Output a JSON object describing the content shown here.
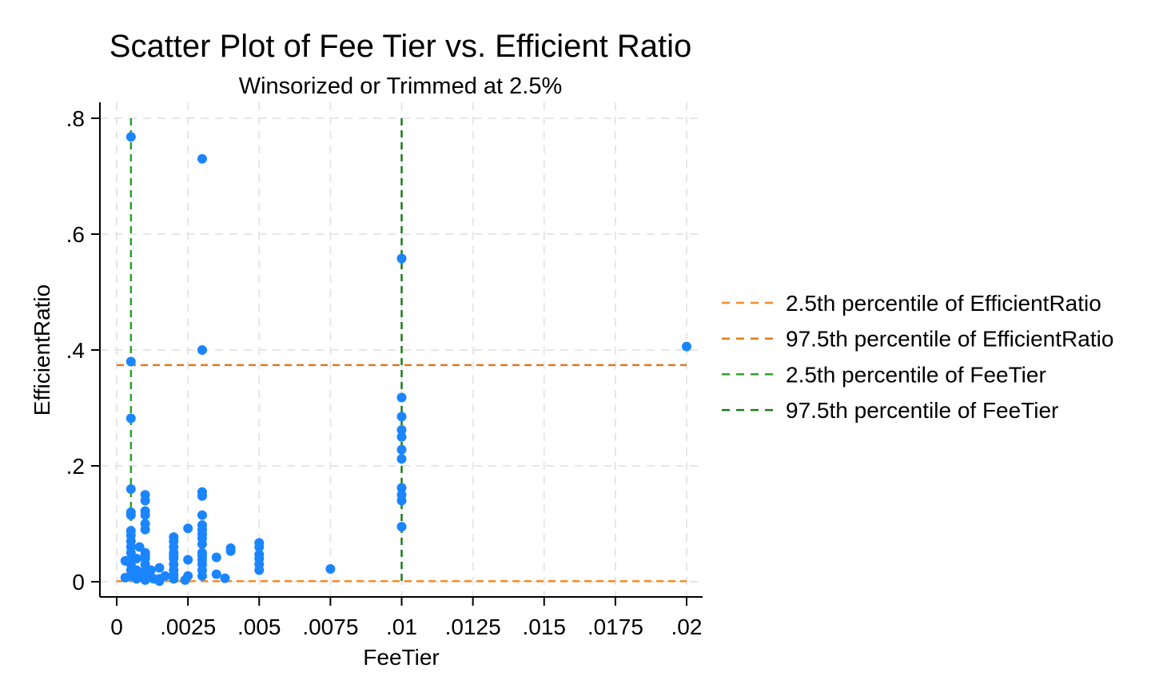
{
  "chart_data": {
    "type": "scatter",
    "title": "Scatter Plot of Fee Tier vs. Efficient Ratio",
    "subtitle": "Winsorized or Trimmed at 2.5%",
    "xlabel": "FeeTier",
    "ylabel": "EfficientRatio",
    "xlim": [
      0,
      0.02
    ],
    "ylim": [
      0,
      0.8
    ],
    "x_ticks": [
      0,
      0.0025,
      0.005,
      0.0075,
      0.01,
      0.0125,
      0.015,
      0.0175,
      0.02
    ],
    "x_tick_labels": [
      "0",
      ".0025",
      ".005",
      ".0075",
      ".01",
      ".0125",
      ".015",
      ".0175",
      ".02"
    ],
    "y_ticks": [
      0,
      0.2,
      0.4,
      0.6,
      0.8
    ],
    "y_tick_labels": [
      "0",
      ".2",
      ".4",
      ".6",
      ".8"
    ],
    "grid": true,
    "legend_position": "right",
    "marker_color": "#1a85ff",
    "points": [
      {
        "x": 0.0005,
        "y": 0.768
      },
      {
        "x": 0.0005,
        "y": 0.38
      },
      {
        "x": 0.0005,
        "y": 0.282
      },
      {
        "x": 0.0005,
        "y": 0.16
      },
      {
        "x": 0.0005,
        "y": 0.12
      },
      {
        "x": 0.0005,
        "y": 0.115
      },
      {
        "x": 0.0005,
        "y": 0.088
      },
      {
        "x": 0.0005,
        "y": 0.08
      },
      {
        "x": 0.0005,
        "y": 0.07
      },
      {
        "x": 0.0005,
        "y": 0.06
      },
      {
        "x": 0.0005,
        "y": 0.05
      },
      {
        "x": 0.0005,
        "y": 0.04
      },
      {
        "x": 0.0005,
        "y": 0.03
      },
      {
        "x": 0.0005,
        "y": 0.02
      },
      {
        "x": 0.0005,
        "y": 0.01
      },
      {
        "x": 0.0003,
        "y": 0.036
      },
      {
        "x": 0.0003,
        "y": 0.007
      },
      {
        "x": 0.0007,
        "y": 0.04
      },
      {
        "x": 0.0007,
        "y": 0.02
      },
      {
        "x": 0.0007,
        "y": 0.005
      },
      {
        "x": 0.0008,
        "y": 0.06
      },
      {
        "x": 0.0008,
        "y": 0.01
      },
      {
        "x": 0.001,
        "y": 0.15
      },
      {
        "x": 0.001,
        "y": 0.14
      },
      {
        "x": 0.001,
        "y": 0.122
      },
      {
        "x": 0.001,
        "y": 0.115
      },
      {
        "x": 0.001,
        "y": 0.1
      },
      {
        "x": 0.001,
        "y": 0.09
      },
      {
        "x": 0.001,
        "y": 0.05
      },
      {
        "x": 0.001,
        "y": 0.045
      },
      {
        "x": 0.001,
        "y": 0.04
      },
      {
        "x": 0.001,
        "y": 0.03
      },
      {
        "x": 0.001,
        "y": 0.02
      },
      {
        "x": 0.001,
        "y": 0.01
      },
      {
        "x": 0.001,
        "y": 0.003
      },
      {
        "x": 0.0012,
        "y": 0.02
      },
      {
        "x": 0.0012,
        "y": 0.008
      },
      {
        "x": 0.0013,
        "y": 0.005
      },
      {
        "x": 0.0015,
        "y": 0.024
      },
      {
        "x": 0.0015,
        "y": 0.005
      },
      {
        "x": 0.0015,
        "y": 0.001
      },
      {
        "x": 0.0017,
        "y": 0.01
      },
      {
        "x": 0.002,
        "y": 0.077
      },
      {
        "x": 0.002,
        "y": 0.07
      },
      {
        "x": 0.002,
        "y": 0.06
      },
      {
        "x": 0.002,
        "y": 0.05
      },
      {
        "x": 0.002,
        "y": 0.045
      },
      {
        "x": 0.002,
        "y": 0.04
      },
      {
        "x": 0.002,
        "y": 0.03
      },
      {
        "x": 0.002,
        "y": 0.02
      },
      {
        "x": 0.002,
        "y": 0.012
      },
      {
        "x": 0.002,
        "y": 0.005
      },
      {
        "x": 0.0025,
        "y": 0.092
      },
      {
        "x": 0.0025,
        "y": 0.038
      },
      {
        "x": 0.0025,
        "y": 0.01
      },
      {
        "x": 0.0024,
        "y": 0.003
      },
      {
        "x": 0.003,
        "y": 0.73
      },
      {
        "x": 0.003,
        "y": 0.4
      },
      {
        "x": 0.003,
        "y": 0.155
      },
      {
        "x": 0.003,
        "y": 0.148
      },
      {
        "x": 0.003,
        "y": 0.115
      },
      {
        "x": 0.003,
        "y": 0.098
      },
      {
        "x": 0.003,
        "y": 0.09
      },
      {
        "x": 0.003,
        "y": 0.082
      },
      {
        "x": 0.003,
        "y": 0.075
      },
      {
        "x": 0.003,
        "y": 0.065
      },
      {
        "x": 0.003,
        "y": 0.05
      },
      {
        "x": 0.003,
        "y": 0.045
      },
      {
        "x": 0.003,
        "y": 0.038
      },
      {
        "x": 0.003,
        "y": 0.03
      },
      {
        "x": 0.003,
        "y": 0.02
      },
      {
        "x": 0.003,
        "y": 0.01
      },
      {
        "x": 0.0035,
        "y": 0.042
      },
      {
        "x": 0.0035,
        "y": 0.013
      },
      {
        "x": 0.0038,
        "y": 0.006
      },
      {
        "x": 0.004,
        "y": 0.058
      },
      {
        "x": 0.004,
        "y": 0.053
      },
      {
        "x": 0.005,
        "y": 0.067
      },
      {
        "x": 0.005,
        "y": 0.06
      },
      {
        "x": 0.005,
        "y": 0.047
      },
      {
        "x": 0.005,
        "y": 0.04
      },
      {
        "x": 0.005,
        "y": 0.03
      },
      {
        "x": 0.005,
        "y": 0.02
      },
      {
        "x": 0.0075,
        "y": 0.022
      },
      {
        "x": 0.01,
        "y": 0.558
      },
      {
        "x": 0.01,
        "y": 0.318
      },
      {
        "x": 0.01,
        "y": 0.285
      },
      {
        "x": 0.01,
        "y": 0.262
      },
      {
        "x": 0.01,
        "y": 0.25
      },
      {
        "x": 0.01,
        "y": 0.228
      },
      {
        "x": 0.01,
        "y": 0.212
      },
      {
        "x": 0.01,
        "y": 0.162
      },
      {
        "x": 0.01,
        "y": 0.15
      },
      {
        "x": 0.01,
        "y": 0.14
      },
      {
        "x": 0.01,
        "y": 0.095
      },
      {
        "x": 0.02,
        "y": 0.406
      }
    ],
    "reference_lines": [
      {
        "name": "2.5th percentile of EfficientRatio",
        "orientation": "horizontal",
        "value": 0.001,
        "color": "#f28e2b"
      },
      {
        "name": "97.5th percentile of EfficientRatio",
        "orientation": "horizontal",
        "value": 0.374,
        "color": "#e07a1f"
      },
      {
        "name": "2.5th percentile of FeeTier",
        "orientation": "vertical",
        "value": 0.0005,
        "color": "#2ca02c"
      },
      {
        "name": "97.5th percentile of FeeTier",
        "orientation": "vertical",
        "value": 0.01,
        "color": "#1a7a1a"
      }
    ]
  }
}
